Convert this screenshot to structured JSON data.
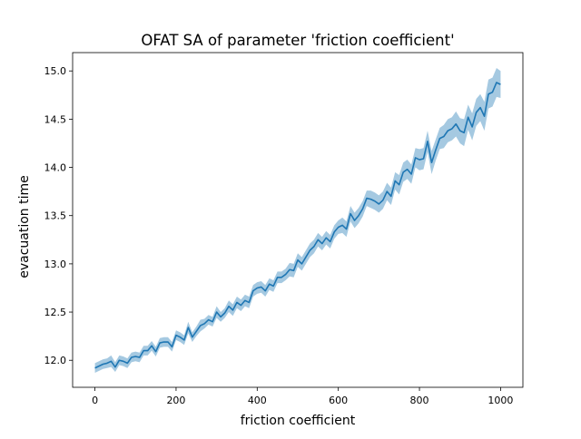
{
  "chart_data": {
    "type": "line",
    "title": "OFAT SA of parameter 'friction coefficient'",
    "xlabel": "friction coefficient",
    "ylabel": "evacuation time",
    "xlim": [
      -55,
      1055
    ],
    "ylim": [
      11.72,
      15.19
    ],
    "xticks": [
      0,
      200,
      400,
      600,
      800,
      1000
    ],
    "xtick_labels": [
      "0",
      "200",
      "400",
      "600",
      "800",
      "1000"
    ],
    "yticks": [
      12.0,
      12.5,
      13.0,
      13.5,
      14.0,
      14.5,
      15.0
    ],
    "ytick_labels": [
      "12.0",
      "12.5",
      "13.0",
      "13.5",
      "14.0",
      "14.5",
      "15.0"
    ],
    "grid": false,
    "colors": {
      "line": "#1f77b4",
      "band": "#1f77b4",
      "band_opacity": 0.4
    },
    "series": [
      {
        "x": [
          0,
          10,
          20,
          30,
          40,
          50,
          60,
          70,
          80,
          90,
          100,
          110,
          120,
          130,
          140,
          150,
          160,
          170,
          180,
          190,
          200,
          210,
          220,
          230,
          240,
          250,
          260,
          270,
          280,
          290,
          300,
          310,
          320,
          330,
          340,
          350,
          360,
          370,
          380,
          390,
          400,
          410,
          420,
          430,
          440,
          450,
          460,
          470,
          480,
          490,
          500,
          510,
          520,
          530,
          540,
          550,
          560,
          570,
          580,
          590,
          600,
          610,
          620,
          630,
          640,
          650,
          660,
          670,
          680,
          690,
          700,
          710,
          720,
          730,
          740,
          750,
          760,
          770,
          780,
          790,
          800,
          810,
          820,
          830,
          840,
          850,
          860,
          870,
          880,
          890,
          900,
          910,
          920,
          930,
          940,
          950,
          960,
          970,
          980,
          990,
          1000
        ],
        "y": [
          11.92,
          11.94,
          11.96,
          11.97,
          11.99,
          11.93,
          12.0,
          11.99,
          11.97,
          12.03,
          12.04,
          12.03,
          12.1,
          12.1,
          12.15,
          12.09,
          12.18,
          12.19,
          12.19,
          12.14,
          12.26,
          12.24,
          12.21,
          12.34,
          12.24,
          12.3,
          12.36,
          12.38,
          12.42,
          12.4,
          12.5,
          12.45,
          12.49,
          12.56,
          12.52,
          12.6,
          12.57,
          12.62,
          12.6,
          12.72,
          12.75,
          12.76,
          12.72,
          12.79,
          12.77,
          12.86,
          12.86,
          12.89,
          12.94,
          12.93,
          13.04,
          13.0,
          13.07,
          13.14,
          13.18,
          13.25,
          13.21,
          13.27,
          13.23,
          13.33,
          13.38,
          13.4,
          13.36,
          13.52,
          13.45,
          13.5,
          13.57,
          13.68,
          13.67,
          13.65,
          13.62,
          13.66,
          13.75,
          13.7,
          13.86,
          13.82,
          13.95,
          13.98,
          13.93,
          14.1,
          14.08,
          14.09,
          14.27,
          14.05,
          14.18,
          14.3,
          14.32,
          14.38,
          14.4,
          14.45,
          14.38,
          14.36,
          14.52,
          14.42,
          14.57,
          14.62,
          14.53,
          14.76,
          14.78,
          14.88,
          14.86
        ],
        "ci_low": [
          11.87,
          11.89,
          11.91,
          11.92,
          11.93,
          11.88,
          11.95,
          11.94,
          11.92,
          11.98,
          11.99,
          11.98,
          12.05,
          12.05,
          12.1,
          12.04,
          12.13,
          12.14,
          12.14,
          12.09,
          12.21,
          12.19,
          12.16,
          12.28,
          12.19,
          12.25,
          12.3,
          12.33,
          12.37,
          12.35,
          12.44,
          12.4,
          12.44,
          12.5,
          12.46,
          12.54,
          12.51,
          12.56,
          12.54,
          12.66,
          12.69,
          12.7,
          12.66,
          12.73,
          12.71,
          12.8,
          12.8,
          12.83,
          12.87,
          12.86,
          12.97,
          12.93,
          13.0,
          13.07,
          13.11,
          13.18,
          13.14,
          13.2,
          13.16,
          13.26,
          13.31,
          13.32,
          13.28,
          13.44,
          13.37,
          13.42,
          13.49,
          13.6,
          13.58,
          13.56,
          13.53,
          13.57,
          13.66,
          13.61,
          13.77,
          13.72,
          13.85,
          13.88,
          13.83,
          14.0,
          13.97,
          13.98,
          14.16,
          13.93,
          14.07,
          14.19,
          14.2,
          14.26,
          14.28,
          14.32,
          14.25,
          14.22,
          14.39,
          14.28,
          14.43,
          14.48,
          14.38,
          14.61,
          14.63,
          14.73,
          14.72
        ],
        "ci_high": [
          11.97,
          11.99,
          12.01,
          12.02,
          12.05,
          11.98,
          12.05,
          12.04,
          12.02,
          12.08,
          12.09,
          12.08,
          12.15,
          12.15,
          12.2,
          12.14,
          12.23,
          12.24,
          12.24,
          12.19,
          12.31,
          12.29,
          12.26,
          12.4,
          12.29,
          12.35,
          12.42,
          12.43,
          12.47,
          12.45,
          12.56,
          12.5,
          12.54,
          12.62,
          12.58,
          12.66,
          12.63,
          12.68,
          12.66,
          12.78,
          12.81,
          12.82,
          12.78,
          12.85,
          12.83,
          12.92,
          12.92,
          12.95,
          13.01,
          13.0,
          13.11,
          13.07,
          13.14,
          13.21,
          13.25,
          13.32,
          13.28,
          13.34,
          13.3,
          13.4,
          13.45,
          13.48,
          13.44,
          13.6,
          13.53,
          13.58,
          13.65,
          13.76,
          13.76,
          13.74,
          13.71,
          13.75,
          13.84,
          13.79,
          13.95,
          13.92,
          14.05,
          14.08,
          14.03,
          14.2,
          14.19,
          14.2,
          14.38,
          14.17,
          14.29,
          14.41,
          14.44,
          14.5,
          14.52,
          14.58,
          14.51,
          14.5,
          14.65,
          14.56,
          14.71,
          14.76,
          14.68,
          14.91,
          14.93,
          15.03,
          15.0
        ]
      }
    ]
  }
}
